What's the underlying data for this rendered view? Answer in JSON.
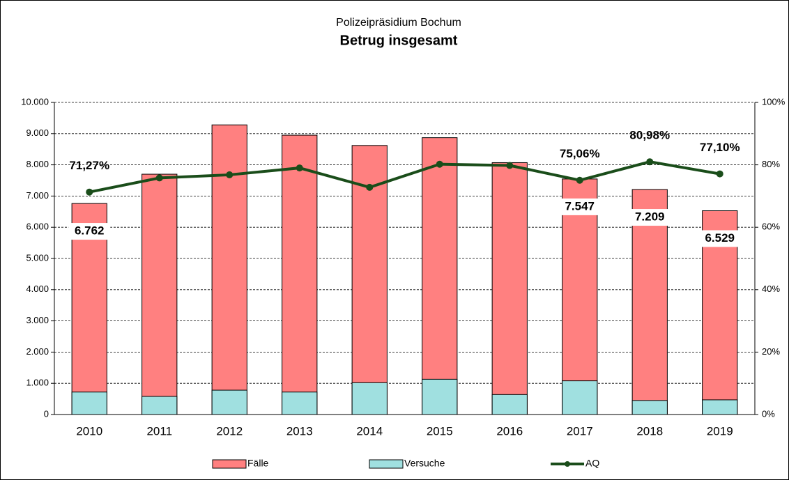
{
  "chart_data": {
    "type": "bar",
    "title": "Polizeipräsidium Bochum",
    "subtitle": "Betrug insgesamt",
    "categories": [
      "2010",
      "2011",
      "2012",
      "2013",
      "2014",
      "2015",
      "2016",
      "2017",
      "2018",
      "2019"
    ],
    "series": [
      {
        "name": "Fälle",
        "type": "bar",
        "color": "#ff8080",
        "values": [
          6762,
          7700,
          9280,
          8950,
          8620,
          8870,
          8070,
          7547,
          7209,
          6529
        ],
        "value_labels": [
          "6.762",
          null,
          null,
          null,
          null,
          null,
          null,
          "7.547",
          "7.209",
          "6.529"
        ]
      },
      {
        "name": "Versuche",
        "type": "bar",
        "color": "#a0e0e0",
        "values": [
          720,
          580,
          780,
          720,
          1020,
          1130,
          640,
          1080,
          450,
          470
        ]
      },
      {
        "name": "AQ",
        "type": "line",
        "axis": "y2",
        "color": "#1a4d1a",
        "values": [
          71.27,
          75.8,
          76.8,
          79.0,
          72.8,
          80.2,
          79.8,
          75.06,
          80.98,
          77.1
        ],
        "value_labels": [
          "71,27%",
          null,
          null,
          null,
          null,
          null,
          null,
          "75,06%",
          "80,98%",
          "77,10%"
        ]
      }
    ],
    "ylim": [
      0,
      10000
    ],
    "yticks": [
      0,
      {
        "value": 1000,
        "label": "1.000"
      },
      {
        "value": 2000,
        "label": "2.000"
      },
      {
        "value": 3000,
        "label": "3.000"
      },
      {
        "value": 4000,
        "label": "4.000"
      },
      {
        "value": 5000,
        "label": "5.000"
      },
      {
        "value": 6000,
        "label": "6.000"
      },
      {
        "value": 7000,
        "label": "7.000"
      },
      {
        "value": 8000,
        "label": "8.000"
      },
      {
        "value": 9000,
        "label": "9.000"
      },
      {
        "value": 10000,
        "label": "10.000"
      }
    ],
    "y2lim": [
      0,
      100
    ],
    "y2ticks": [
      {
        "value": 0,
        "label": "0%"
      },
      {
        "value": 20,
        "label": "20%"
      },
      {
        "value": 40,
        "label": "40%"
      },
      {
        "value": 60,
        "label": "60%"
      },
      {
        "value": 80,
        "label": "80%"
      },
      {
        "value": 100,
        "label": "100%"
      }
    ],
    "grid": true,
    "legend": "bottom"
  }
}
